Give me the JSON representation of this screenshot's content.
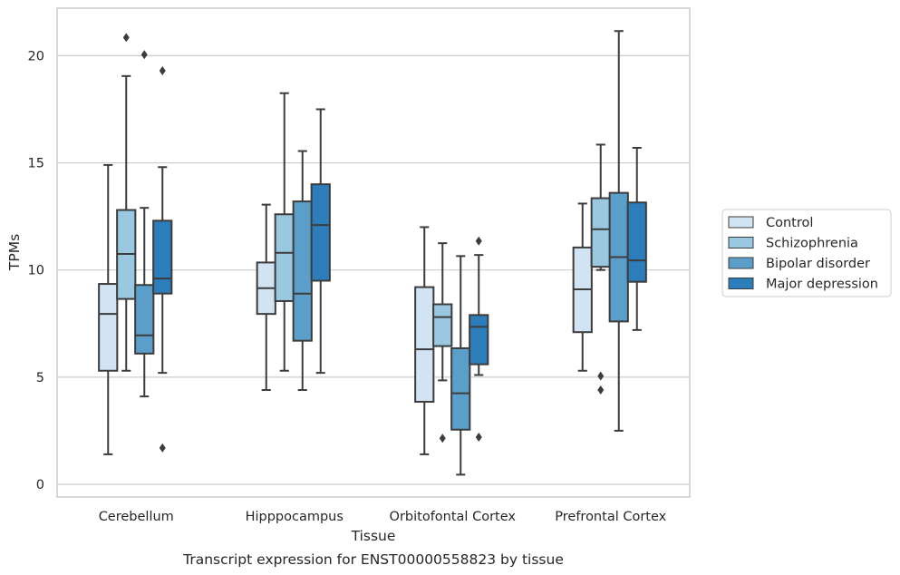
{
  "chart_data": {
    "type": "boxplot",
    "title": "Transcript expression for ENST00000558823 by tissue",
    "xlabel": "Tissue",
    "ylabel": "TPMs",
    "ylim": [
      -0.6,
      22.2
    ],
    "yticks": [
      0,
      5,
      10,
      15,
      20
    ],
    "grid": "horizontal",
    "legend_position": "outside-right",
    "categories": [
      "Cerebellum",
      "Hipppocampus",
      "Orbitofontal Cortex",
      "Prefrontal Cortex"
    ],
    "series": [
      {
        "name": "Control",
        "color": "#d2e3f3",
        "boxes": [
          {
            "whisker_low": 1.4,
            "q1": 5.3,
            "median": 7.95,
            "q3": 9.35,
            "whisker_high": 14.9,
            "outliers": []
          },
          {
            "whisker_low": 4.4,
            "q1": 7.95,
            "median": 9.15,
            "q3": 10.35,
            "whisker_high": 13.05,
            "outliers": []
          },
          {
            "whisker_low": 1.4,
            "q1": 3.85,
            "median": 6.3,
            "q3": 9.2,
            "whisker_high": 12.0,
            "outliers": []
          },
          {
            "whisker_low": 5.3,
            "q1": 7.1,
            "median": 9.1,
            "q3": 11.05,
            "whisker_high": 13.1,
            "outliers": []
          }
        ]
      },
      {
        "name": "Schizophrenia",
        "color": "#9ac8e0",
        "boxes": [
          {
            "whisker_low": 5.3,
            "q1": 8.65,
            "median": 10.75,
            "q3": 12.8,
            "whisker_high": 19.05,
            "outliers": [
              20.85
            ]
          },
          {
            "whisker_low": 5.3,
            "q1": 8.55,
            "median": 10.8,
            "q3": 12.6,
            "whisker_high": 18.25,
            "outliers": []
          },
          {
            "whisker_low": 4.85,
            "q1": 6.45,
            "median": 7.8,
            "q3": 8.4,
            "whisker_high": 11.25,
            "outliers": [
              2.15
            ]
          },
          {
            "whisker_low": 10.0,
            "q1": 10.15,
            "median": 11.9,
            "q3": 13.35,
            "whisker_high": 15.85,
            "outliers": [
              5.05,
              4.4
            ]
          }
        ]
      },
      {
        "name": "Bipolar disorder",
        "color": "#5b9ec9",
        "boxes": [
          {
            "whisker_low": 4.1,
            "q1": 6.1,
            "median": 6.95,
            "q3": 9.3,
            "whisker_high": 12.9,
            "outliers": [
              20.05
            ]
          },
          {
            "whisker_low": 4.4,
            "q1": 6.7,
            "median": 8.9,
            "q3": 13.2,
            "whisker_high": 15.55,
            "outliers": []
          },
          {
            "whisker_low": 0.45,
            "q1": 2.55,
            "median": 4.25,
            "q3": 6.35,
            "whisker_high": 10.65,
            "outliers": []
          },
          {
            "whisker_low": 2.5,
            "q1": 7.6,
            "median": 10.6,
            "q3": 13.6,
            "whisker_high": 21.15,
            "outliers": []
          }
        ]
      },
      {
        "name": "Major depression",
        "color": "#2d7dbb",
        "boxes": [
          {
            "whisker_low": 5.2,
            "q1": 8.9,
            "median": 9.6,
            "q3": 12.3,
            "whisker_high": 14.8,
            "outliers": [
              19.3,
              1.7
            ]
          },
          {
            "whisker_low": 5.2,
            "q1": 9.5,
            "median": 12.1,
            "q3": 14.0,
            "whisker_high": 17.5,
            "outliers": []
          },
          {
            "whisker_low": 5.1,
            "q1": 5.6,
            "median": 7.35,
            "q3": 7.9,
            "whisker_high": 10.7,
            "outliers": [
              11.35,
              2.2
            ]
          },
          {
            "whisker_low": 7.2,
            "q1": 9.45,
            "median": 10.45,
            "q3": 13.15,
            "whisker_high": 15.7,
            "outliers": []
          }
        ]
      }
    ]
  }
}
